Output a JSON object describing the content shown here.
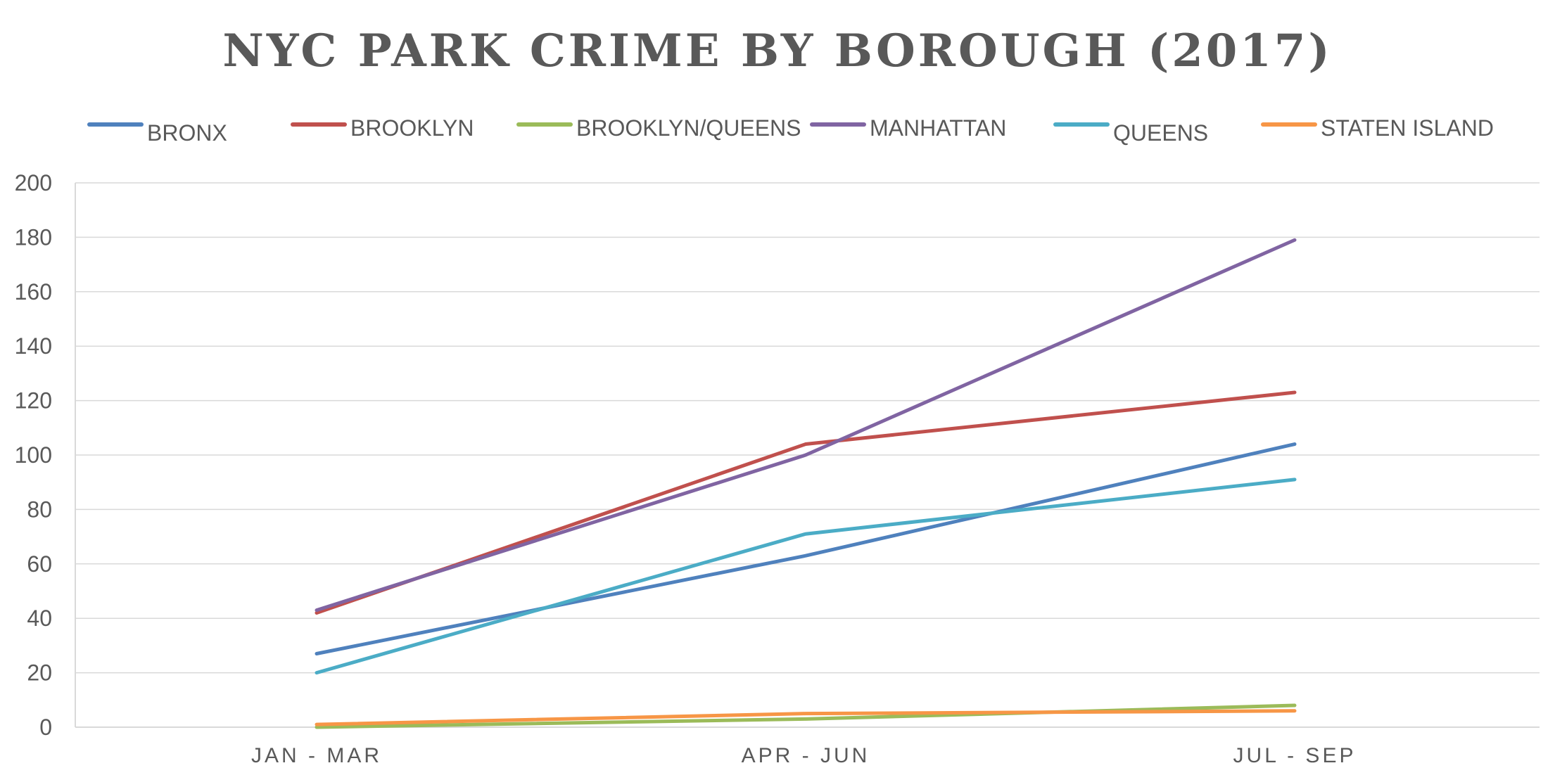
{
  "chart_data": {
    "type": "line",
    "title": "NYC PARK CRIME BY BOROUGH (2017)",
    "xlabel": "",
    "ylabel": "",
    "categories": [
      "JAN - MAR",
      "APR - JUN",
      "JUL - SEP"
    ],
    "ylim": [
      0,
      200
    ],
    "yticks": [
      0,
      20,
      40,
      60,
      80,
      100,
      120,
      140,
      160,
      180,
      200
    ],
    "grid": true,
    "legend_position": "top",
    "series": [
      {
        "name": "BRONX",
        "color": "#4f81bd",
        "values": [
          27,
          63,
          104
        ]
      },
      {
        "name": "BROOKLYN",
        "color": "#c0504d",
        "values": [
          42,
          104,
          123
        ]
      },
      {
        "name": "BROOKLYN/QUEENS",
        "color": "#9bbb59",
        "values": [
          0,
          3,
          8
        ]
      },
      {
        "name": "MANHATTAN",
        "color": "#8064a2",
        "values": [
          43,
          100,
          179
        ]
      },
      {
        "name": "QUEENS",
        "color": "#4bacc6",
        "values": [
          20,
          71,
          91
        ]
      },
      {
        "name": "STATEN ISLAND",
        "color": "#f79646",
        "values": [
          1,
          5,
          6
        ]
      }
    ]
  }
}
